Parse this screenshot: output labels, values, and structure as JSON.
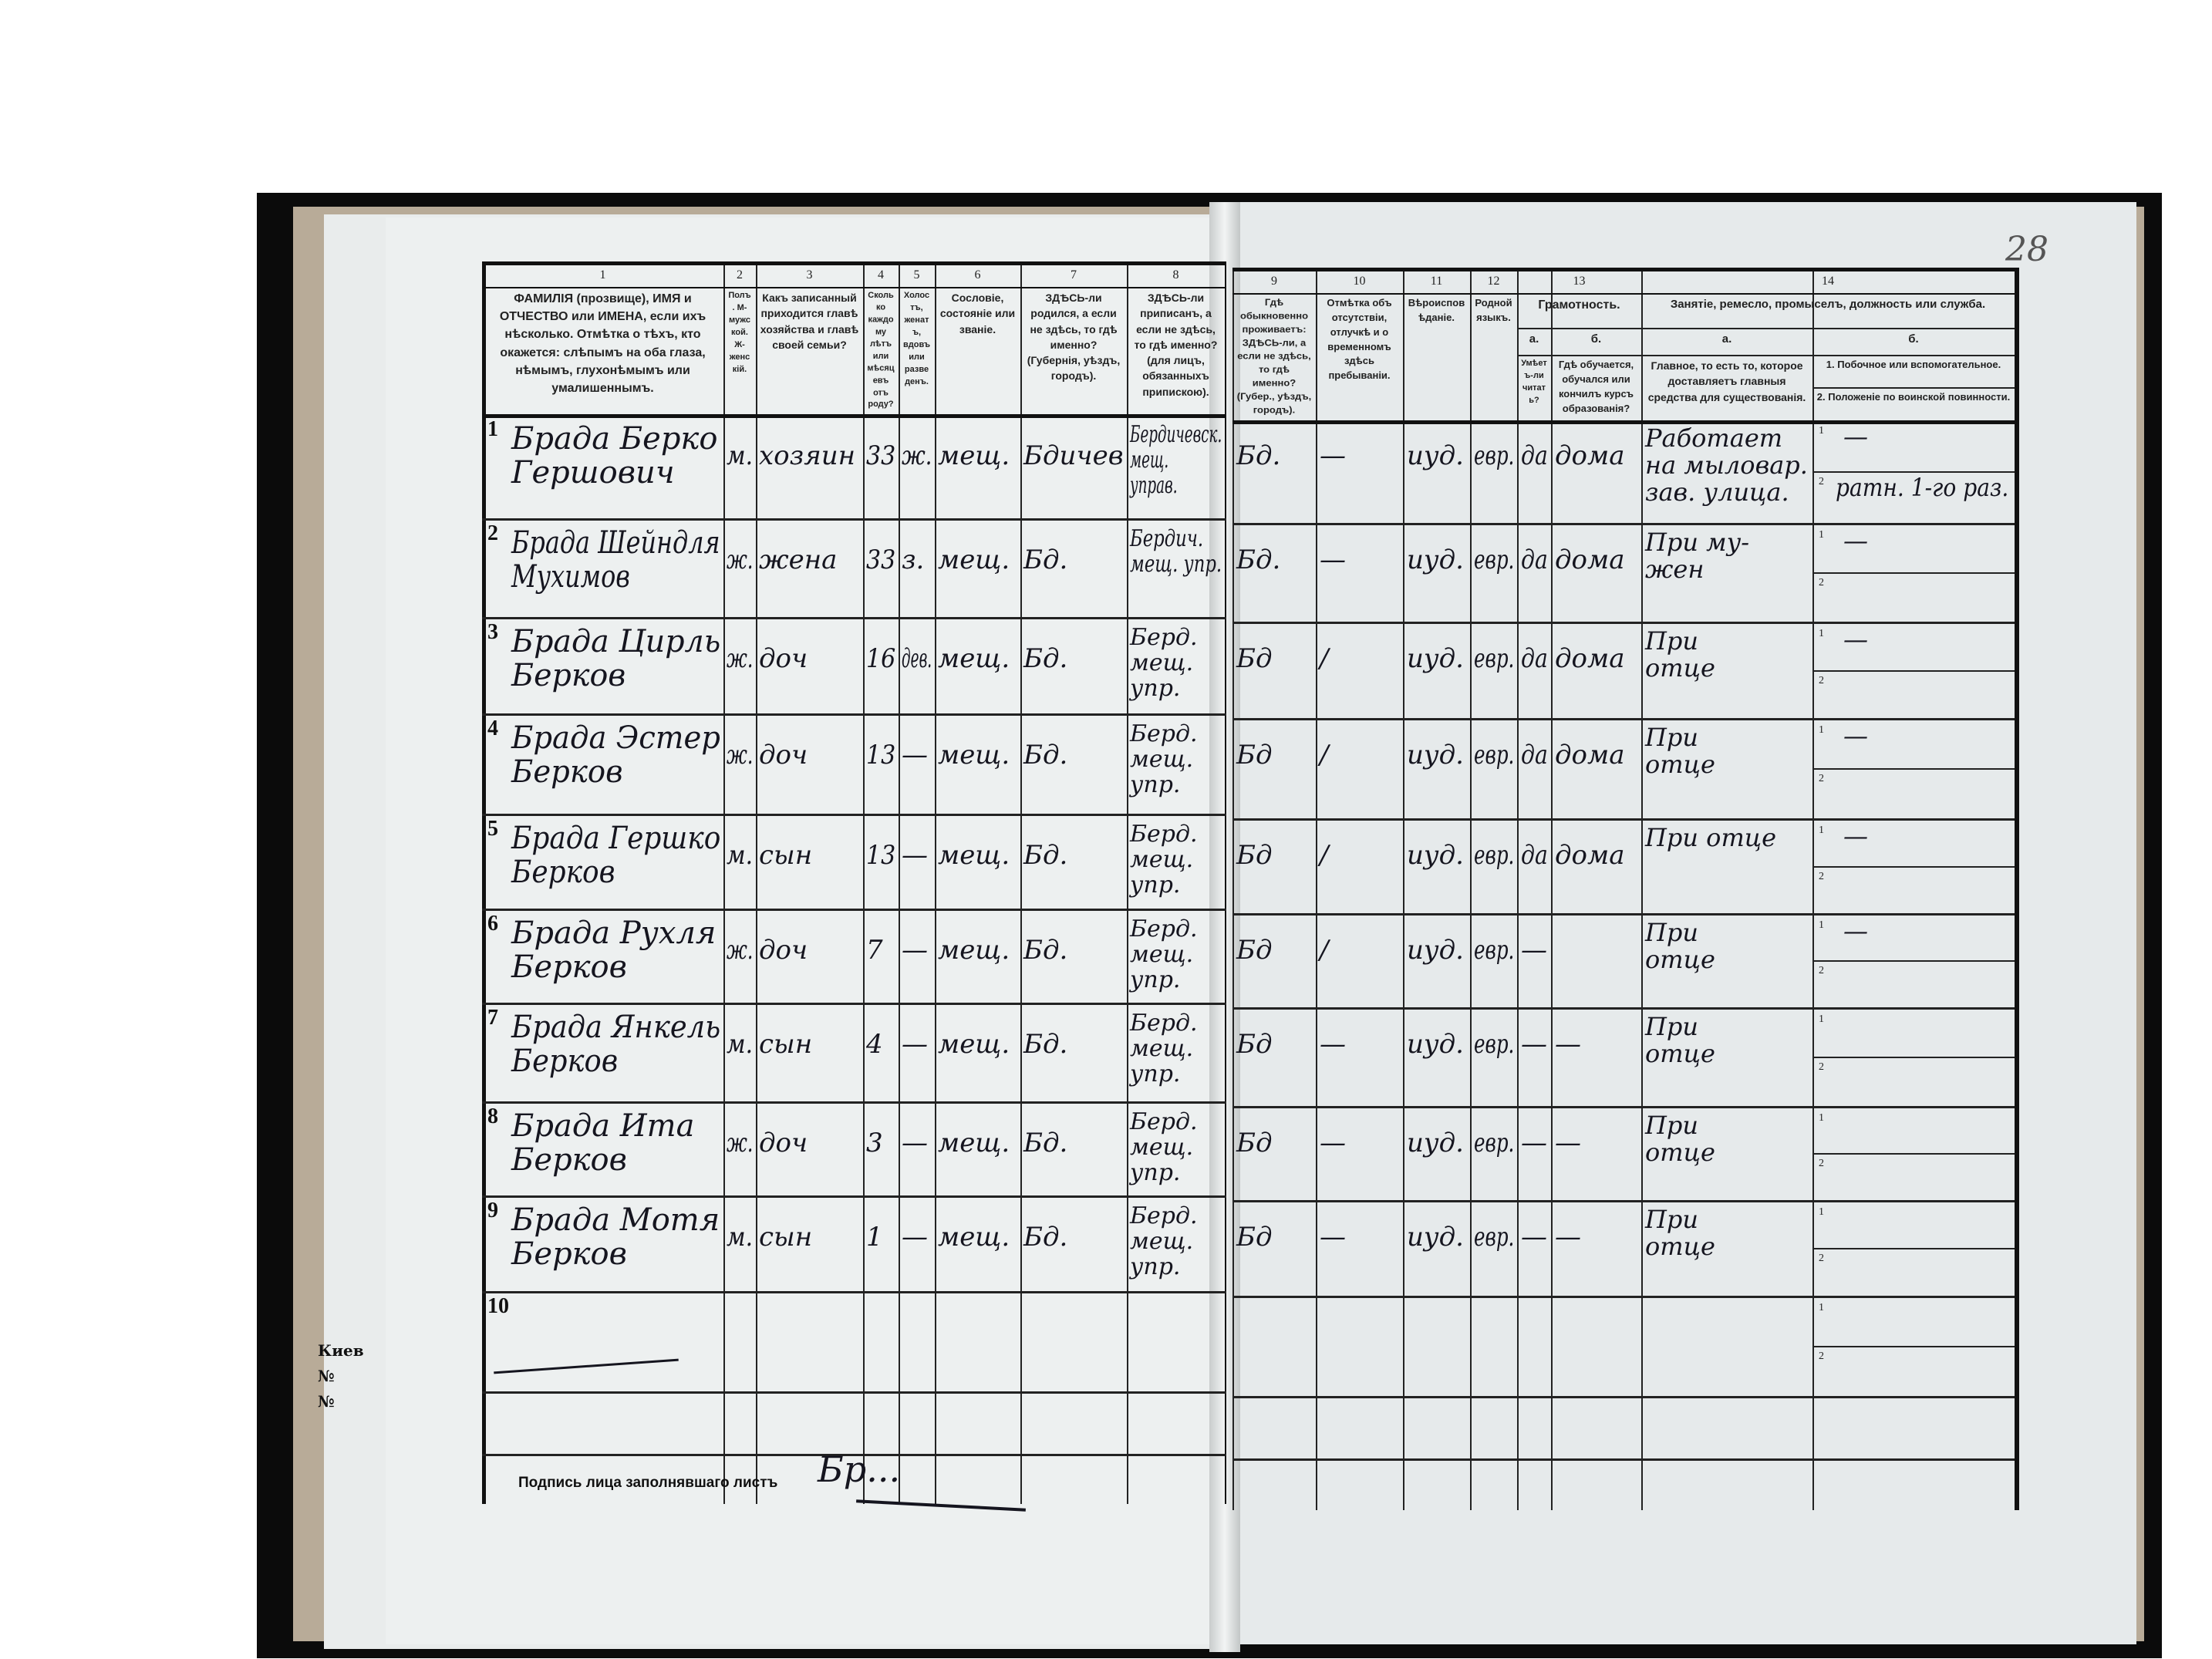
{
  "margin_notes": {
    "left_edge": [
      "Киев",
      "№",
      "№"
    ],
    "corner_page_number": "28"
  },
  "header": {
    "column_numbers": [
      "1",
      "2",
      "3",
      "4",
      "5",
      "6",
      "7",
      "8",
      "9",
      "10",
      "11",
      "12",
      "13",
      "14"
    ],
    "col1": "ФАМИЛІЯ (прозвище), ИМЯ и ОТЧЕСТВО или ИМЕНА, если ихъ нѣсколько. Отмѣтка о тѣхъ, кто окажется: слѣпымъ на оба глаза, нѣмымъ, глухонѣмымъ или умалишеннымъ.",
    "col2": "Полъ. М-мужской. Ж-женскій.",
    "col3": "Какъ записанный приходится главѣ хозяйства и главѣ своей семьи?",
    "col4": "Сколько каждому лѣтъ или мѣсяцевъ отъ роду?",
    "col5": "Холостъ, женатъ, вдовъ или разведенъ.",
    "col6": "Сословіе, состояніе или званіе.",
    "col7": "ЗДѢСЬ-ли родился, а если не здѣсь, то гдѣ именно? (Губернія, уѣздъ, городъ).",
    "col8": "ЗДѢСЬ-ли приписанъ, а если не здѣсь, то гдѣ именно? (для лицъ, обязанныхъ припискою).",
    "col9": "Гдѣ обыкновенно проживаетъ: ЗДѢСЬ-ли, а если не здѣсь, то гдѣ именно? (Губер., уѣздъ, городъ).",
    "col10": "Отмѣтка объ отсутствіи, отлучкѣ и о временномъ здѣсь пребываніи.",
    "col11": "Вѣроисповѣданіе.",
    "col12": "Родной языкъ.",
    "col13": "Грамотность.",
    "col13a_label": "а.",
    "col13a": "Умѣетъ-ли читать?",
    "col13b_label": "б.",
    "col13b": "Гдѣ обучается, обучался или кончилъ курсъ образованія?",
    "col14": "Занятіе, ремесло, промыселъ, должность или служба.",
    "col14a_label": "а.",
    "col14a": "Главное, то есть то, которое доставляетъ главныя средства для существованія.",
    "col14b_label": "б.",
    "col14b1": "1. Побочное или вспомогательное.",
    "col14b2": "2. Положеніе по воинской повинности."
  },
  "rows": [
    {
      "n": "1",
      "name": "Брада Берко\nГершович",
      "sex": "м.",
      "relation": "хозяин",
      "age": "33",
      "marital": "ж.",
      "estate": "мещ.",
      "birthplace": "Бдичев",
      "registered": "Бердичевск.\nмещ.\nуправ.",
      "residence": "Бд.",
      "absence": "—",
      "religion": "иуд.",
      "language": "евр.",
      "literate": "да",
      "school": "дома",
      "occupation": "Работает\nна мыловар.\nзав. улица.",
      "side": "—",
      "military": "ратн. 1-го раз."
    },
    {
      "n": "2",
      "name": "Брада Шейндля\nМухимов",
      "sex": "ж.",
      "relation": "жена",
      "age": "33",
      "marital": "з.",
      "estate": "мещ.",
      "birthplace": "Бд.",
      "registered": "Бердич.\nмещ. упр.",
      "residence": "Бд.",
      "absence": "—",
      "religion": "иуд.",
      "language": "евр.",
      "literate": "да",
      "school": "дома",
      "occupation": "При му-\nжен",
      "side": "—",
      "military": ""
    },
    {
      "n": "3",
      "name": "Брада Цирль\nБерков",
      "sex": "ж.",
      "relation": "доч",
      "age": "16",
      "marital": "дев.",
      "estate": "мещ.",
      "birthplace": "Бд.",
      "registered": "Берд.\nмещ.\nупр.",
      "residence": "Бд",
      "absence": "/",
      "religion": "иуд.",
      "language": "евр.",
      "literate": "да",
      "school": "дома",
      "occupation": "При\nотце",
      "side": "—",
      "military": ""
    },
    {
      "n": "4",
      "name": "Брада Эстер\nБерков",
      "sex": "ж.",
      "relation": "доч",
      "age": "13",
      "marital": "—",
      "estate": "мещ.",
      "birthplace": "Бд.",
      "registered": "Берд.\nмещ.\nупр.",
      "residence": "Бд",
      "absence": "/",
      "religion": "иуд.",
      "language": "евр.",
      "literate": "да",
      "school": "дома",
      "occupation": "При\nотце",
      "side": "—",
      "military": ""
    },
    {
      "n": "5",
      "name": "Брада Гершко\nБерков",
      "sex": "м.",
      "relation": "сын",
      "age": "13",
      "marital": "—",
      "estate": "мещ.",
      "birthplace": "Бд.",
      "registered": "Берд.\nмещ.\nупр.",
      "residence": "Бд",
      "absence": "/",
      "religion": "иуд.",
      "language": "евр.",
      "literate": "да",
      "school": "дома",
      "occupation": "При отце",
      "side": "—",
      "military": ""
    },
    {
      "n": "6",
      "name": "Брада Рухля\nБерков",
      "sex": "ж.",
      "relation": "доч",
      "age": "7",
      "marital": "—",
      "estate": "мещ.",
      "birthplace": "Бд.",
      "registered": "Берд.\nмещ.\nупр.",
      "residence": "Бд",
      "absence": "/",
      "religion": "иуд.",
      "language": "евр.",
      "literate": "—",
      "school": "",
      "occupation": "При\nотце",
      "side": "—",
      "military": ""
    },
    {
      "n": "7",
      "name": "Брада Янкель\nБерков",
      "sex": "м.",
      "relation": "сын",
      "age": "4",
      "marital": "—",
      "estate": "мещ.",
      "birthplace": "Бд.",
      "registered": "Берд.\nмещ.\nупр.",
      "residence": "Бд",
      "absence": "—",
      "religion": "иуд.",
      "language": "евр.",
      "literate": "—",
      "school": "—",
      "occupation": "При\nотце",
      "side": "",
      "military": ""
    },
    {
      "n": "8",
      "name": "Брада Ита\nБерков",
      "sex": "ж.",
      "relation": "доч",
      "age": "3",
      "marital": "—",
      "estate": "мещ.",
      "birthplace": "Бд.",
      "registered": "Берд.\nмещ.\nупр.",
      "residence": "Бд",
      "absence": "—",
      "religion": "иуд.",
      "language": "евр.",
      "literate": "—",
      "school": "—",
      "occupation": "При\nотце",
      "side": "",
      "military": ""
    },
    {
      "n": "9",
      "name": "Брада Мотя\nБерков",
      "sex": "м.",
      "relation": "сын",
      "age": "1",
      "marital": "—",
      "estate": "мещ.",
      "birthplace": "Бд.",
      "registered": "Берд.\nмещ.\nупр.",
      "residence": "Бд",
      "absence": "—",
      "religion": "иуд.",
      "language": "евр.",
      "literate": "—",
      "school": "—",
      "occupation": "При\nотце",
      "side": "",
      "military": ""
    },
    {
      "n": "10",
      "name": "",
      "sex": "",
      "relation": "",
      "age": "",
      "marital": "",
      "estate": "",
      "birthplace": "",
      "registered": "",
      "residence": "",
      "absence": "",
      "religion": "",
      "language": "",
      "literate": "",
      "school": "",
      "occupation": "",
      "side": "",
      "military": ""
    }
  ],
  "sub_labels": [
    "1",
    "2"
  ],
  "footer": {
    "signature_label": "Подпись лица заполнявшаго листъ",
    "signature": "Бр..."
  }
}
